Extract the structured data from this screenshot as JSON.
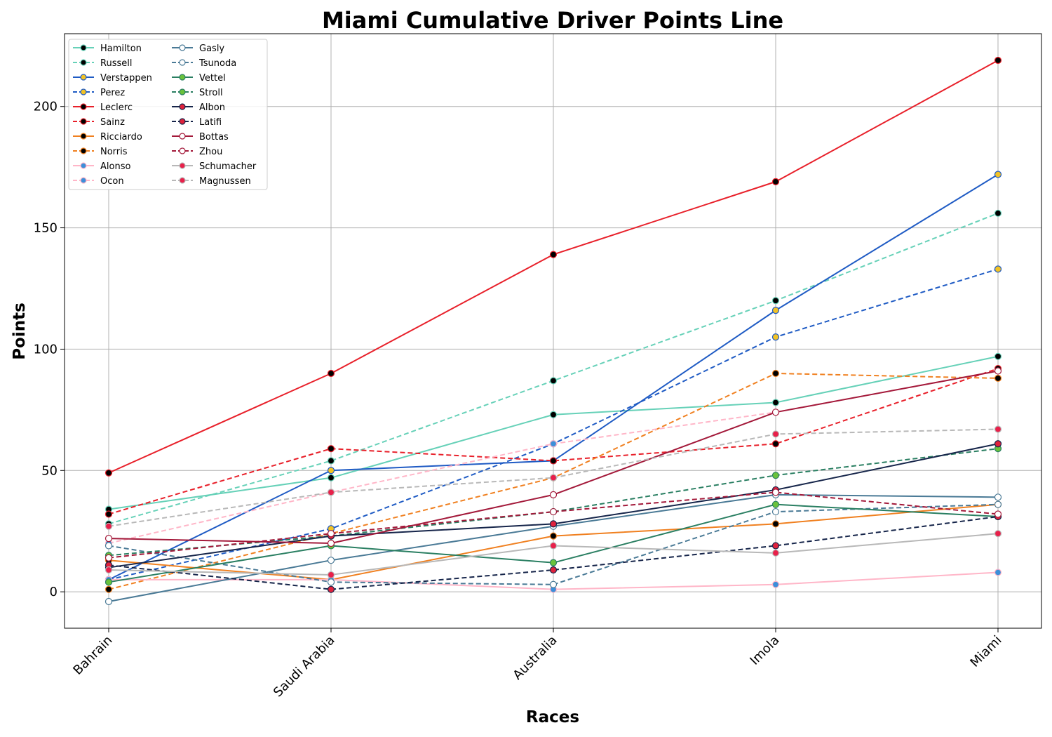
{
  "chart_data": {
    "type": "line",
    "title": "Miami Cumulative Driver Points Line",
    "xlabel": "Races",
    "ylabel": "Points",
    "categories": [
      "Bahrain",
      "Saudi Arabia",
      "Australia",
      "Imola",
      "Miami"
    ],
    "ylim": [
      -15,
      230
    ],
    "yticks": [
      0,
      50,
      100,
      150,
      200
    ],
    "grid": true,
    "legend_position": "top-left",
    "legend_columns": 2,
    "series": [
      {
        "name": "Hamilton",
        "values": [
          34,
          47,
          73,
          78,
          97
        ],
        "color": "#66d1b8",
        "dash": "solid",
        "marker_fill": "#000000"
      },
      {
        "name": "Russell",
        "values": [
          28,
          54,
          87,
          120,
          156
        ],
        "color": "#66d1b8",
        "dash": "dashed",
        "marker_fill": "#000000"
      },
      {
        "name": "Verstappen",
        "values": [
          5,
          50,
          54,
          116,
          172
        ],
        "color": "#1f5bc4",
        "dash": "solid",
        "marker_fill": "#f2c225"
      },
      {
        "name": "Perez",
        "values": [
          5,
          26,
          61,
          105,
          133
        ],
        "color": "#1f5bc4",
        "dash": "dashed",
        "marker_fill": "#f2c225"
      },
      {
        "name": "Leclerc",
        "values": [
          49,
          90,
          139,
          169,
          219
        ],
        "color": "#e8202a",
        "dash": "solid",
        "marker_fill": "#000000"
      },
      {
        "name": "Sainz",
        "values": [
          32,
          59,
          54,
          61,
          92
        ],
        "color": "#e8202a",
        "dash": "dashed",
        "marker_fill": "#000000"
      },
      {
        "name": "Ricciardo",
        "values": [
          13,
          5,
          23,
          28,
          36
        ],
        "color": "#f08020",
        "dash": "solid",
        "marker_fill": "#000000"
      },
      {
        "name": "Norris",
        "values": [
          1,
          24,
          47,
          90,
          88
        ],
        "color": "#f08020",
        "dash": "dashed",
        "marker_fill": "#000000"
      },
      {
        "name": "Alonso",
        "values": [
          5,
          5,
          1,
          3,
          8
        ],
        "color": "#ffb6c8",
        "dash": "solid",
        "marker_fill": "#3d8fd9"
      },
      {
        "name": "Ocon",
        "values": [
          20,
          41,
          61,
          74,
          91
        ],
        "color": "#ffb6c8",
        "dash": "dashed",
        "marker_fill": "#3d8fd9"
      },
      {
        "name": "Gasly",
        "values": [
          -4,
          13,
          27,
          40,
          39
        ],
        "color": "#4a7a96",
        "dash": "solid",
        "marker_fill": "#ffffff"
      },
      {
        "name": "Tsunoda",
        "values": [
          19,
          4,
          3,
          33,
          36
        ],
        "color": "#4a7a96",
        "dash": "dashed",
        "marker_fill": "#ffffff"
      },
      {
        "name": "Vettel",
        "values": [
          4,
          19,
          12,
          36,
          31
        ],
        "color": "#2a7f62",
        "dash": "solid",
        "marker_fill": "#6ac23c"
      },
      {
        "name": "Stroll",
        "values": [
          15,
          23,
          33,
          48,
          59
        ],
        "color": "#2a7f62",
        "dash": "dashed",
        "marker_fill": "#6ac23c"
      },
      {
        "name": "Albon",
        "values": [
          10,
          23,
          28,
          42,
          61
        ],
        "color": "#16254a",
        "dash": "solid",
        "marker_fill": "#e0223c"
      },
      {
        "name": "Latifi",
        "values": [
          11,
          1,
          9,
          19,
          31
        ],
        "color": "#16254a",
        "dash": "dashed",
        "marker_fill": "#e0223c"
      },
      {
        "name": "Bottas",
        "values": [
          22,
          20,
          40,
          74,
          91
        ],
        "color": "#a3193a",
        "dash": "solid",
        "marker_fill": "#ffffff"
      },
      {
        "name": "Zhou",
        "values": [
          14,
          24,
          33,
          41,
          32
        ],
        "color": "#a3193a",
        "dash": "dashed",
        "marker_fill": "#ffffff"
      },
      {
        "name": "Schumacher",
        "values": [
          9,
          7,
          19,
          16,
          24
        ],
        "color": "#b8b8b8",
        "dash": "solid",
        "marker_fill": "#e8204a"
      },
      {
        "name": "Magnussen",
        "values": [
          27,
          41,
          47,
          65,
          67
        ],
        "color": "#b8b8b8",
        "dash": "dashed",
        "marker_fill": "#e8204a"
      }
    ]
  }
}
